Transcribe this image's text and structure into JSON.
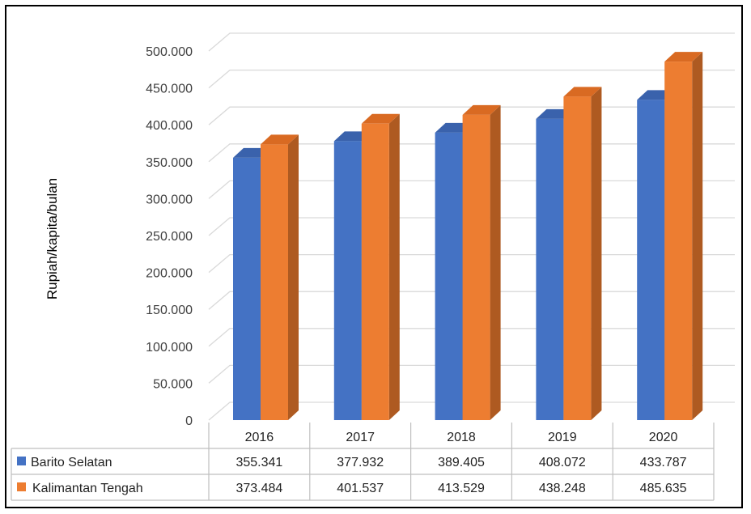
{
  "chart_data": {
    "type": "bar",
    "categories": [
      "2016",
      "2017",
      "2018",
      "2019",
      "2020"
    ],
    "series": [
      {
        "name": "Barito Selatan",
        "values": [
          355341,
          377932,
          389405,
          408072,
          433787
        ],
        "labels": [
          "355.341",
          "377.932",
          "389.405",
          "408.072",
          "433.787"
        ]
      },
      {
        "name": "Kalimantan Tengah",
        "values": [
          373484,
          401537,
          413529,
          438248,
          485635
        ],
        "labels": [
          "373.484",
          "401.537",
          "413.529",
          "438.248",
          "485.635"
        ]
      }
    ],
    "ylabel": "Rupiah/kapita/bulan",
    "ylim": [
      0,
      500000
    ],
    "yticks": [
      "0",
      "50.000",
      "100.000",
      "150.000",
      "200.000",
      "250.000",
      "300.000",
      "350.000",
      "400.000",
      "450.000",
      "500.000"
    ],
    "style": "3d-clustered-column",
    "data_table": true,
    "grid": true,
    "colors": {
      "Barito Selatan": {
        "front": "#4472C4",
        "top": "#3A62AC",
        "side": "#2F528F"
      },
      "Kalimantan Tengah": {
        "front": "#ED7D31",
        "top": "#D96A22",
        "side": "#AE5A21"
      },
      "grid": "#D9D9D9",
      "table_border": "#BFBFBF"
    }
  }
}
